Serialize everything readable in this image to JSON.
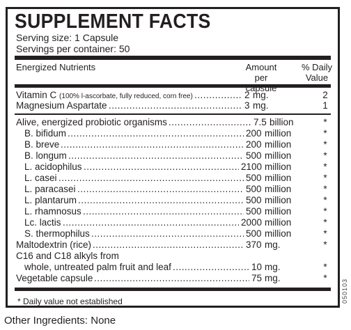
{
  "title": "SUPPLEMENT FACTS",
  "serving_size": "Serving size: 1 Capsule",
  "servings_per_container": "Servings per container: 50",
  "headers": {
    "nutrients": "Energized Nutrients",
    "amount_line1": "Amount",
    "amount_line2": "per capsule",
    "dv_line1": "% Daily",
    "dv_line2": "Value"
  },
  "rows": [
    {
      "name": "Vitamin C",
      "note": "(100% l-ascorbate, fully reduced, corn free)",
      "amount": "2",
      "unit": "mg.",
      "dv": "2"
    },
    {
      "name": "Magnesium Aspartate",
      "amount": "3",
      "unit": "mg.",
      "dv": "1"
    },
    {
      "name": "Alive, energized probiotic organisms",
      "amount": "7.5",
      "unit": "billion",
      "dv": "*"
    },
    {
      "name": "B. bifidum",
      "amount": "200",
      "unit": "million",
      "dv": "*"
    },
    {
      "name": "B. breve",
      "amount": "200",
      "unit": "million",
      "dv": "*"
    },
    {
      "name": "B. longum",
      "amount": "500",
      "unit": "million",
      "dv": "*"
    },
    {
      "name": "L. acidophilus",
      "amount": "2100",
      "unit": "million",
      "dv": "*"
    },
    {
      "name": "L. casei",
      "amount": "500",
      "unit": "million",
      "dv": "*"
    },
    {
      "name": "L. paracasei",
      "amount": "500",
      "unit": "million",
      "dv": "*"
    },
    {
      "name": "L. plantarum",
      "amount": "500",
      "unit": "million",
      "dv": "*"
    },
    {
      "name": "L. rhamnosus",
      "amount": "500",
      "unit": "million",
      "dv": "*"
    },
    {
      "name": "Lc. lactis",
      "amount": "2000",
      "unit": "million",
      "dv": "*"
    },
    {
      "name": "S. thermophilus",
      "amount": "500",
      "unit": "million",
      "dv": "*"
    },
    {
      "name": "Maltodextrin (rice)",
      "amount": "370",
      "unit": "mg.",
      "dv": "*"
    },
    {
      "name": "C16 and C18 alkyls from"
    },
    {
      "name": "whole, untreated palm fruit and leaf",
      "amount": "10",
      "unit": "mg.",
      "dv": "*"
    },
    {
      "name": "Vegetable capsule",
      "amount": "75",
      "unit": "mg.",
      "dv": "*"
    }
  ],
  "footnote": "* Daily value not established",
  "other_ingredients": "Other Ingredients: None",
  "side_code": "050103"
}
